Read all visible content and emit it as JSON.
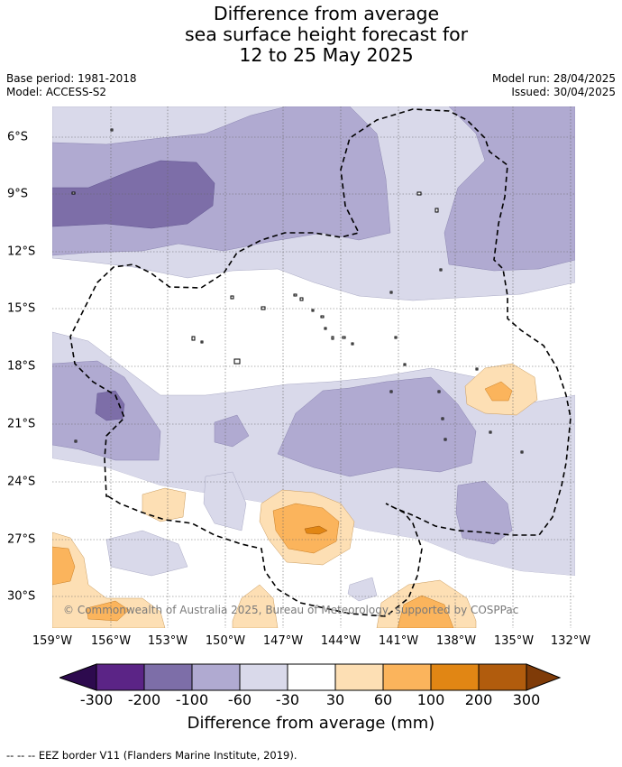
{
  "title": {
    "line1": "Difference from average",
    "line2": "sea surface height forecast for",
    "line3": "12 to 25 May 2025"
  },
  "meta": {
    "base_period": "Base period: 1981-2018",
    "model": "Model: ACCESS-S2",
    "model_run": "Model run: 28/04/2025",
    "issued": "Issued: 30/04/2025"
  },
  "map": {
    "lon_ticks": [
      "159°W",
      "156°W",
      "153°W",
      "150°W",
      "147°W",
      "144°W",
      "141°W",
      "138°W",
      "135°W",
      "132°W"
    ],
    "lat_ticks": [
      "6°S",
      "9°S",
      "12°S",
      "15°S",
      "18°S",
      "21°S",
      "24°S",
      "27°S",
      "30°S"
    ],
    "extent": {
      "lon_min": -159.7,
      "lon_max": -132.1,
      "lat_max": -4.4,
      "lat_min": -31.8
    },
    "copyright": "© Commonwealth of Australia 2025, Bureau of Meteorology, supported by COSPPac"
  },
  "colorbar": {
    "labels": [
      "-300",
      "-200",
      "-100",
      "-60",
      "-30",
      "30",
      "60",
      "100",
      "200",
      "300"
    ],
    "colors": {
      "below_-300": "#2d0a4e",
      "-300_-200": "#5b2486",
      "-200_-100": "#7d6ea8",
      "-100_-60": "#b0aad1",
      "-60_-30": "#d9d9ea",
      "-30_30": "#ffffff",
      "30_60": "#fddfb4",
      "60_100": "#fbb45c",
      "100_200": "#e18614",
      "200_300": "#b15c0d",
      "above_300": "#7f3b08"
    },
    "title": "Difference from average (mm)"
  },
  "footer": "--  --  -- EEZ border V11 (Flanders Marine Institute, 2019)."
}
